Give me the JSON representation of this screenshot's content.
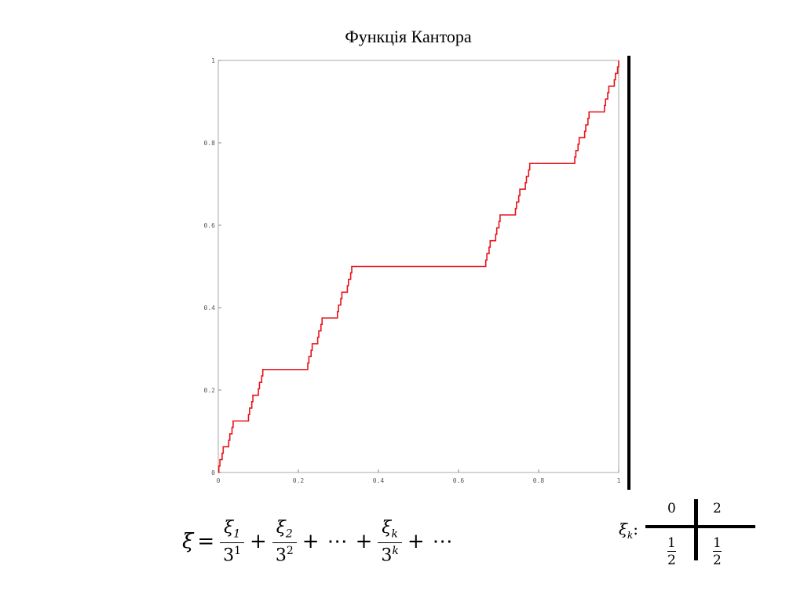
{
  "slide": {
    "title": "Функція Кантора"
  },
  "chart_data": {
    "type": "line",
    "title": "",
    "xlabel": "",
    "ylabel": "",
    "xlim": [
      0,
      1
    ],
    "ylim": [
      0,
      1
    ],
    "x_ticks": [
      "0",
      "0.2",
      "0.4",
      "0.6",
      "0.8",
      "1"
    ],
    "y_ticks": [
      "0",
      "0.2",
      "0.4",
      "0.6",
      "0.8",
      "1"
    ],
    "grid": false,
    "series_color": "#e8141a",
    "series": [
      {
        "function": "cantor",
        "depth": 6,
        "x_range": [
          0,
          1
        ]
      }
    ],
    "plateaus": [
      {
        "x": [
          0.333,
          0.667
        ],
        "y": 0.5
      },
      {
        "x": [
          0.111,
          0.222
        ],
        "y": 0.25
      },
      {
        "x": [
          0.778,
          0.889
        ],
        "y": 0.75
      },
      {
        "x": [
          0.037,
          0.074
        ],
        "y": 0.125
      },
      {
        "x": [
          0.259,
          0.296
        ],
        "y": 0.375
      },
      {
        "x": [
          0.704,
          0.741
        ],
        "y": 0.625
      },
      {
        "x": [
          0.926,
          0.963
        ],
        "y": 0.875
      }
    ]
  },
  "formula": {
    "lhs": "ξ",
    "eq": "=",
    "term1_num": "ξ",
    "term1_num_sub": "1",
    "term1_den": "3",
    "term1_den_sup": "1",
    "plus": "+",
    "term2_num": "ξ",
    "term2_num_sub": "2",
    "term2_den": "3",
    "term2_den_sup": "2",
    "dots": "⋯",
    "termk_num": "ξ",
    "termk_num_sub": "k",
    "termk_den": "3",
    "termk_den_sup": "k"
  },
  "distribution": {
    "var": "ξ",
    "var_sub": "k",
    "colon": ":",
    "values": [
      "0",
      "2"
    ],
    "prob_num": "1",
    "prob_den": "2"
  }
}
